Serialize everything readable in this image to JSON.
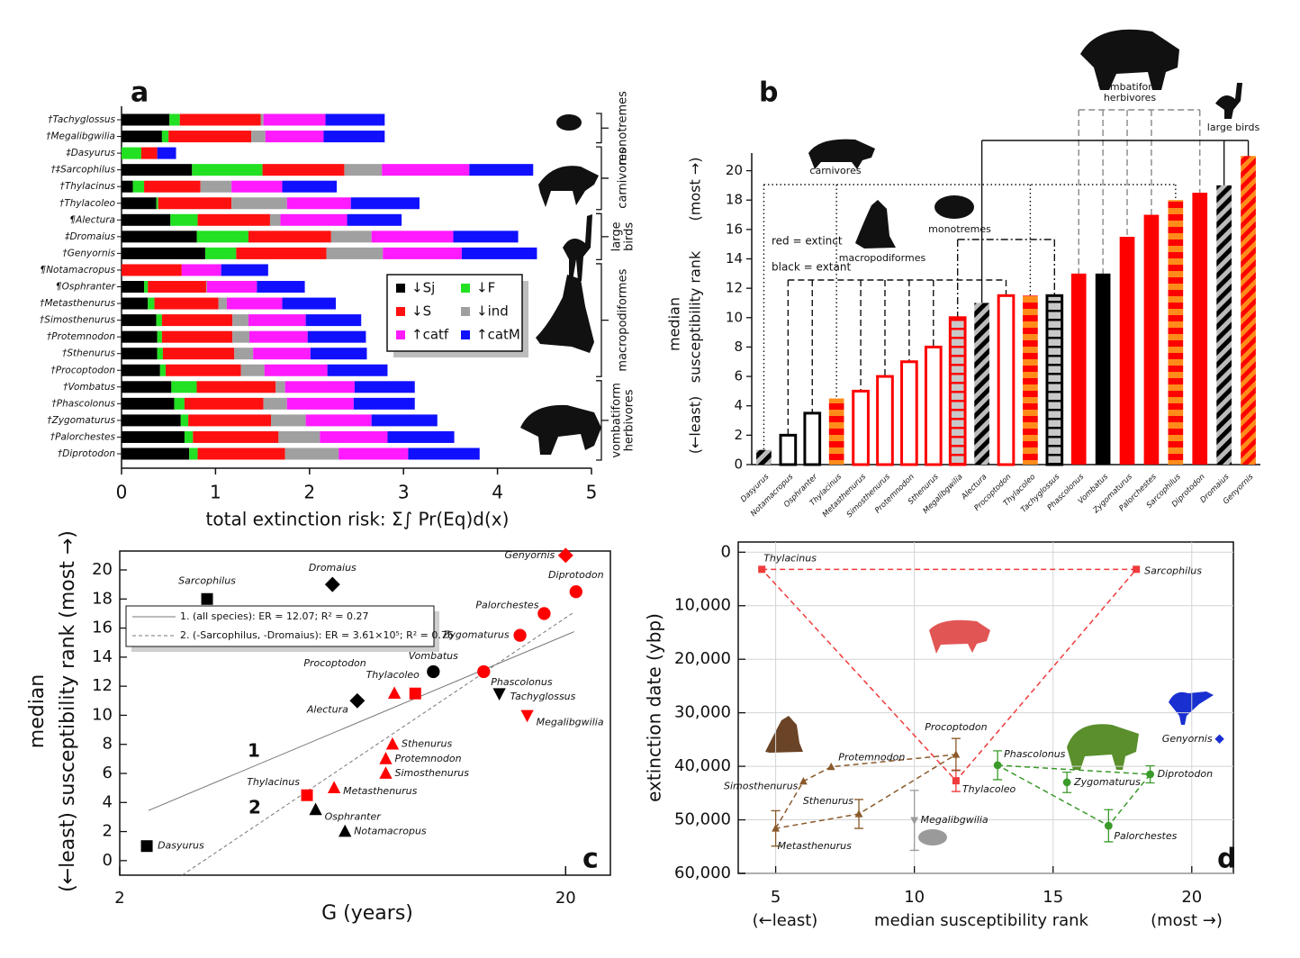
{
  "chart_data": [
    {
      "type": "bar",
      "orientation": "horizontal",
      "stacked": true,
      "letter": "a",
      "categories": [
        "†Tachyglossus",
        "†Megalibgwilia",
        "‡Dasyurus",
        "†‡Sarcophilus",
        "†Thylacinus",
        "†Thylacoleo",
        "¶Alectura",
        "‡Dromaius",
        "†Genyornis",
        "¶Notamacropus",
        "¶Osphranter",
        "†Metasthenurus",
        "†Simosthenurus",
        "†Protemnodon",
        "†Sthenurus",
        "†Procoptodon",
        "†Vombatus",
        "†Phascolonus",
        "†Zygomaturus",
        "†Palorchestes",
        "†Diprotodon"
      ],
      "series": [
        {
          "name": "↓Sj",
          "color": "#000000",
          "values": [
            0.51,
            0.43,
            0,
            0.75,
            0.12,
            0.37,
            0.52,
            0.8,
            0.89,
            0,
            0.24,
            0.28,
            0.37,
            0.38,
            0.38,
            0.41,
            0.53,
            0.56,
            0.63,
            0.67,
            0.72
          ]
        },
        {
          "name": "↓F",
          "color": "#22e022",
          "values": [
            0.11,
            0.07,
            0.21,
            0.75,
            0.12,
            0.02,
            0.29,
            0.55,
            0.33,
            0,
            0.04,
            0.07,
            0.06,
            0.05,
            0.06,
            0.06,
            0.27,
            0.11,
            0.08,
            0.09,
            0.09
          ]
        },
        {
          "name": "↓S",
          "color": "#ff1010",
          "values": [
            0.86,
            0.88,
            0.17,
            0.87,
            0.6,
            0.78,
            0.77,
            0.88,
            0.96,
            0.64,
            0.62,
            0.68,
            0.75,
            0.75,
            0.76,
            0.8,
            0.84,
            0.84,
            0.88,
            0.91,
            0.93
          ]
        },
        {
          "name": "↓ind",
          "color": "#a0a0a0",
          "values": [
            0.03,
            0.15,
            0,
            0.4,
            0.33,
            0.59,
            0.11,
            0.43,
            0.6,
            0,
            0.01,
            0.09,
            0.17,
            0.18,
            0.2,
            0.25,
            0.1,
            0.25,
            0.37,
            0.44,
            0.57
          ]
        },
        {
          "name": "↑catf",
          "color": "#ff1aff",
          "values": [
            0.66,
            0.62,
            0,
            0.93,
            0.54,
            0.68,
            0.71,
            0.87,
            0.84,
            0.42,
            0.53,
            0.59,
            0.61,
            0.62,
            0.61,
            0.67,
            0.74,
            0.71,
            0.7,
            0.72,
            0.74
          ]
        },
        {
          "name": "↑catM",
          "color": "#1010ff",
          "values": [
            0.63,
            0.65,
            0.2,
            0.68,
            0.58,
            0.73,
            0.58,
            0.69,
            0.8,
            0.5,
            0.51,
            0.57,
            0.59,
            0.62,
            0.6,
            0.64,
            0.64,
            0.65,
            0.7,
            0.71,
            0.76
          ]
        }
      ],
      "xlim": [
        0,
        5
      ],
      "xticks": [
        0,
        1,
        2,
        3,
        4,
        5
      ],
      "xlabel": "total extinction risk: Σ∫ Pr(Eq)d(x)",
      "groups": [
        [
          "monotremes"
        ],
        [
          "carnivores"
        ],
        [
          "large",
          "birds"
        ],
        [
          "macropodiformes"
        ],
        [
          "vombatiform",
          "herbivores"
        ]
      ]
    },
    {
      "type": "bar",
      "letter": "b",
      "categories": [
        "Dasyurus",
        "Notamacropus",
        "Osphranter",
        "Thylacinus",
        "Metasthenurus",
        "Simosthenurus",
        "Protemnodon",
        "Sthenurus",
        "Megalibgwilia",
        "Alectura",
        "Procoptodon",
        "Thylacoleo",
        "Tachyglossus",
        "Phascolonus",
        "Vombatus",
        "Zygomaturus",
        "Palorchestes",
        "Sarcophilus",
        "Diprotodon",
        "Dromaius",
        "Genyornis"
      ],
      "values": [
        1,
        2,
        3.5,
        4.5,
        5,
        6,
        7,
        8,
        10,
        11,
        11.5,
        11.5,
        11.5,
        13,
        13,
        15.5,
        17,
        18,
        18.5,
        19,
        21
      ],
      "colors": [
        "#000000",
        "#000000",
        "#000000",
        "#ff0000",
        "#ff0000",
        "#ff0000",
        "#ff0000",
        "#ff0000",
        "#ff0000",
        "#000000",
        "#ff0000",
        "#ff0000",
        "#000000",
        "#ff0000",
        "#000000",
        "#ff0000",
        "#ff0000",
        "#ff0000",
        "#ff0000",
        "#000000",
        "#ff0000"
      ],
      "patterns": [
        "diagonal",
        "hollow",
        "hollow",
        "bands",
        "hollow",
        "hollow",
        "hollow",
        "hollow",
        "ladder",
        "diagonal",
        "hollow",
        "bands",
        "ladder",
        "solid",
        "solid",
        "solid",
        "solid",
        "bands",
        "solid",
        "diagonal",
        "diagonal"
      ],
      "alt_colors": [
        "#bbbbbb",
        null,
        null,
        "#ff8c1a",
        null,
        null,
        null,
        null,
        "#c8c8c8",
        "#bbbbbb",
        null,
        "#ff8c1a",
        "#c8c8c8",
        null,
        null,
        null,
        null,
        "#ff8c1a",
        null,
        "#bbbbbb",
        "#ff8c1a"
      ],
      "ylim": [
        0,
        21.2
      ],
      "yticks": [
        0,
        2,
        4,
        6,
        8,
        10,
        12,
        14,
        16,
        18,
        20
      ],
      "ylabel": [
        "median",
        "susceptibility rank"
      ],
      "ylabel_top": "(most →)",
      "ylabel_bottom": "(←least)",
      "annotations": [
        "red = extinct",
        "black = extant"
      ],
      "groups": [
        [
          "carnivores"
        ],
        [
          "macropodiformes"
        ],
        [
          "monotremes"
        ],
        [
          "vombatiform",
          "herbivores"
        ],
        [
          "large birds"
        ]
      ]
    },
    {
      "type": "scatter",
      "letter": "c",
      "xlog": true,
      "labels": [
        "Dasyurus",
        "Sarcophilus",
        "Dromaius",
        "Genyornis",
        "Diprotodon",
        "Palorchestes",
        "Zygomaturus",
        "Vombatus",
        "Phascolonus",
        "Thylacoleo",
        "Procoptodon",
        "Alectura",
        "Tachyglossus",
        "Megalibgwilia",
        "Sthenurus",
        "Protemnodon",
        "Simosthenurus",
        "Metasthenurus",
        "Thylacinus",
        "Osphranter",
        "Notamacropus"
      ],
      "x": [
        2.3,
        3.14,
        6.0,
        20,
        21.1,
        17.9,
        15.8,
        10.1,
        13.1,
        9.2,
        8.26,
        6.82,
        14.2,
        16.4,
        8.18,
        7.9,
        7.9,
        6.05,
        5.26,
        5.5,
        6.4
      ],
      "values": [
        1,
        18,
        19,
        21,
        18.5,
        17,
        15.5,
        13,
        13,
        11.5,
        11.5,
        11,
        11.5,
        10,
        8,
        7,
        6,
        5,
        4.5,
        3.5,
        2
      ],
      "colors": [
        "#000000",
        "#000000",
        "#000000",
        "#ff0000",
        "#ff0000",
        "#ff0000",
        "#ff0000",
        "#000000",
        "#ff0000",
        "#ff0000",
        "#ff0000",
        "#000000",
        "#000000",
        "#ff0000",
        "#ff0000",
        "#ff0000",
        "#ff0000",
        "#ff0000",
        "#ff0000",
        "#000000",
        "#000000"
      ],
      "markers": [
        "square",
        "square",
        "diamond",
        "diamond",
        "circle",
        "circle",
        "circle",
        "circle",
        "circle",
        "square",
        "triangle",
        "diamond",
        "triangle-down",
        "triangle-down",
        "triangle",
        "triangle",
        "triangle",
        "triangle",
        "square",
        "triangle",
        "triangle"
      ],
      "fits": [
        {
          "name": "1",
          "label": "1. (all species): ER = 12.07; R² = 0.27",
          "x": [
            2.32,
            20.9
          ],
          "values": [
            3.45,
            15.75
          ],
          "dash": false
        },
        {
          "name": "2",
          "label": "2. (-Sarcophilus, -Dromaius): ER = 3.61×10⁵; R² = 0.76",
          "x": [
            2.76,
            20.9
          ],
          "values": [
            -1,
            17.1
          ],
          "dash": true
        }
      ],
      "xlim": [
        2,
        25.2
      ],
      "xticks": [
        2,
        20
      ],
      "ylim": [
        -1,
        21.3
      ],
      "yticks": [
        0,
        2,
        4,
        6,
        8,
        10,
        12,
        14,
        16,
        18,
        20
      ],
      "xlabel": "G (years)",
      "ylabel": [
        "median",
        "(←least) susceptibility rank (most →)"
      ]
    },
    {
      "type": "scatter",
      "letter": "d",
      "grid": true,
      "series": [
        {
          "color": "#ef3b3b",
          "marker": "square",
          "closed": true,
          "labels": [
            "Thylacinus",
            "Sarcophilus",
            "Thylacoleo"
          ],
          "x": [
            4.5,
            18,
            11.5
          ],
          "values": [
            3200,
            3200,
            42700
          ],
          "errors": [
            null,
            null,
            2000
          ]
        },
        {
          "color": "#8b5a2b",
          "marker": "triangle",
          "closed": true,
          "labels": [
            "Metasthenurus",
            "Simosthenurus",
            "Protemnodon",
            "Procoptodon",
            "Sthenurus"
          ],
          "x": [
            5,
            6,
            7,
            11.5,
            8
          ],
          "values": [
            51600,
            42800,
            40100,
            37800,
            48900
          ],
          "errors": [
            3300,
            null,
            null,
            3000,
            2700
          ]
        },
        {
          "color": "#3a9a2a",
          "marker": "circle",
          "closed": true,
          "labels": [
            "Phascolonus",
            "Diprotodon",
            "Palorchestes"
          ],
          "x": [
            13,
            18.5,
            17
          ],
          "values": [
            39800,
            41500,
            51100
          ],
          "errors": [
            2700,
            1600,
            3000
          ]
        },
        {
          "color": "#3a9a2a",
          "marker": "circle",
          "closed": false,
          "labels": [
            "Zygomaturus"
          ],
          "x": [
            15.5
          ],
          "values": [
            43000
          ],
          "errors": [
            1900
          ]
        },
        {
          "color": "#9a9a9a",
          "marker": "triangle-down",
          "closed": false,
          "labels": [
            "Megalibgwilia"
          ],
          "x": [
            10
          ],
          "values": [
            50100
          ],
          "errors": [
            5600
          ]
        },
        {
          "color": "#1a2fd0",
          "marker": "diamond",
          "closed": false,
          "labels": [
            "Genyornis"
          ],
          "x": [
            21
          ],
          "values": [
            34900
          ],
          "errors": [
            null
          ]
        }
      ],
      "xlim": [
        3.65,
        21.5
      ],
      "xticks": [
        5,
        10,
        15,
        20
      ],
      "ylim": [
        60000,
        -1900
      ],
      "yticks": [
        0,
        {
          "value": 10000,
          "label": "10,000"
        },
        {
          "value": 20000,
          "label": "20,000"
        },
        {
          "value": 30000,
          "label": "30,000"
        },
        {
          "value": 40000,
          "label": "40,000"
        },
        {
          "value": 50000,
          "label": "50,000"
        },
        {
          "value": 60000,
          "label": "60,000"
        }
      ],
      "xlabel": "median susceptibility rank",
      "xlabel_left": "(←least)",
      "xlabel_right": "(most →)",
      "ylabel": "extinction date (ybp)"
    }
  ]
}
